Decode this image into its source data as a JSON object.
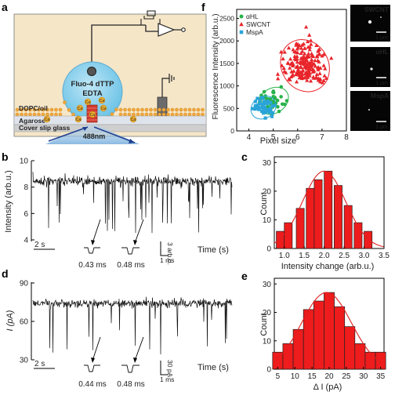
{
  "panel_labels": {
    "a": "a",
    "b": "b",
    "c": "c",
    "d": "d",
    "e": "e",
    "f": "f"
  },
  "schematic": {
    "droplet_line1": "Fluo-4 dTTP",
    "droplet_line2": "EDTA",
    "bilayer": "DOPC/oil",
    "agarose": "Agarose",
    "glass": "Cover slip glass",
    "laser": "488nm",
    "ion": "Ca"
  },
  "trace_b": {
    "ylabel": "Intensity (arb.u.)",
    "yticks": [
      "4",
      "6",
      "8",
      "10"
    ],
    "time_label": "Time (s)",
    "scalebar_time": "2 s",
    "event1_dwell": "0.43 ms",
    "event2_dwell": "0.48 ms",
    "scalebar_y": "3 arb.u.",
    "scalebar_x": "1 ms"
  },
  "trace_d": {
    "ylabel": "I (pA)",
    "yticks": [
      "30",
      "60",
      "90"
    ],
    "time_label": "Time (s)",
    "scalebar_time": "2 s",
    "event1_dwell": "0.44 ms",
    "event2_dwell": "0.48 ms",
    "scalebar_y": "30 pA",
    "scalebar_x": "1 ms"
  },
  "micrographs": {
    "labels": [
      "SWCNT",
      "αHL",
      "MspA"
    ],
    "scale": "1 μm",
    "label_colors": [
      "#e8343a",
      "#39c24a",
      "#3ab0e0"
    ]
  },
  "colors": {
    "bar": "#ee1c1c",
    "fit": "#e02020",
    "swcnt": "#e8242a",
    "ahl": "#28b34a",
    "mspa": "#2aa4d8"
  },
  "chart_data": [
    {
      "id": "c",
      "type": "bar",
      "xlabel": "Intensity change (arb.u.)",
      "ylabel": "Count",
      "xticks": [
        "1.0",
        "1.5",
        "2.0",
        "2.5",
        "3.0",
        "3.5"
      ],
      "yticks": [
        "0",
        "10",
        "20",
        "30"
      ],
      "x": [
        0.9,
        1.1,
        1.4,
        1.65,
        1.85,
        2.1,
        2.35,
        2.6,
        2.85,
        3.1,
        3.35
      ],
      "values": [
        6,
        9,
        14,
        21,
        24,
        27,
        22,
        15,
        9,
        6,
        0
      ],
      "xlim": [
        0.75,
        3.5
      ],
      "ylim": [
        0,
        32
      ],
      "fit": "gaussian"
    },
    {
      "id": "e",
      "type": "bar",
      "xlabel": "Δ I (pA)",
      "ylabel": "Count",
      "xticks": [
        "5",
        "10",
        "15",
        "20",
        "25",
        "30",
        "35"
      ],
      "yticks": [
        "0",
        "10",
        "20",
        "30"
      ],
      "x": [
        5,
        8,
        11,
        14,
        17,
        20,
        23,
        26,
        29,
        32,
        35
      ],
      "values": [
        6,
        9,
        14,
        21,
        24,
        27,
        22,
        15,
        9,
        6,
        6
      ],
      "xlim": [
        4,
        36
      ],
      "ylim": [
        0,
        32
      ],
      "fit": "gaussian"
    },
    {
      "id": "f",
      "type": "scatter",
      "xlabel": "Pixel size",
      "ylabel": "Fluorescence Intensity (arb.u.)",
      "xticks": [
        "4",
        "5",
        "6",
        "7",
        "8"
      ],
      "yticks": [
        "0",
        "500",
        "1000",
        "1500",
        "2000",
        "2500"
      ],
      "xlim": [
        3.5,
        8.0
      ],
      "ylim": [
        0,
        2700
      ],
      "series": [
        {
          "name": "αHL",
          "marker": "circle",
          "center": [
            5.0,
            670
          ],
          "spread": [
            0.55,
            230
          ],
          "n": 45
        },
        {
          "name": "SWCNT",
          "marker": "triangle",
          "center": [
            6.3,
            1450
          ],
          "spread": [
            0.8,
            500
          ],
          "n": 190
        },
        {
          "name": "MspA",
          "marker": "square",
          "center": [
            4.6,
            520
          ],
          "spread": [
            0.45,
            200
          ],
          "n": 45
        }
      ]
    }
  ]
}
